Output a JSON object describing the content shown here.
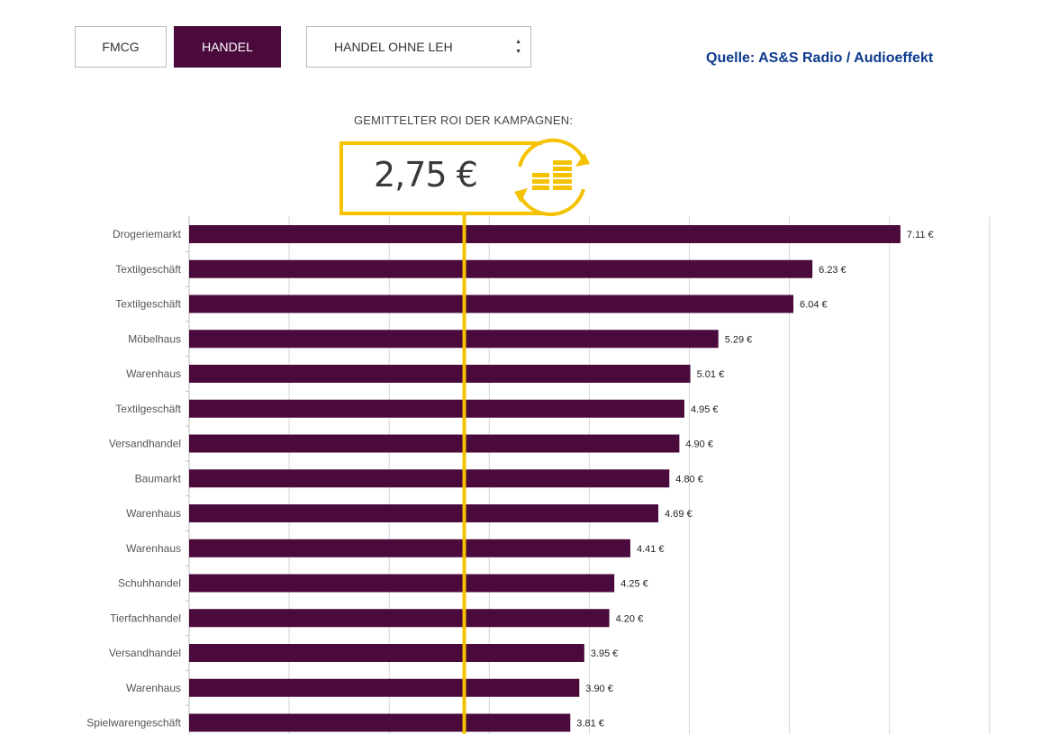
{
  "filters": {
    "fmcg_label": "FMCG",
    "handel_label": "HANDEL",
    "active": "HANDEL",
    "select_value": "HANDEL OHNE LEH"
  },
  "source": "Quelle: AS&S Radio / Audioeffekt",
  "roi": {
    "label": "GEMITTELTER ROI DER KAMPAGNEN:",
    "value": "2,75 €",
    "numeric": 2.75
  },
  "colors": {
    "bar": "#4a0a3c",
    "accent": "#f5c200",
    "active_button": "#4a0a3c",
    "source_text": "#0d3a8c",
    "grid": "#d6d6d6"
  },
  "chart_data": {
    "type": "bar",
    "orientation": "horizontal",
    "categories": [
      "Drogeriemarkt",
      "Textilgeschäft",
      "Textilgeschäft",
      "Möbelhaus",
      "Warenhaus",
      "Textilgeschäft",
      "Versandhandel",
      "Baumarkt",
      "Warenhaus",
      "Warenhaus",
      "Schuhhandel",
      "Tierfachhandel",
      "Versandhandel",
      "Warenhaus",
      "Spielwarengeschäft"
    ],
    "values": [
      7.11,
      6.23,
      6.04,
      5.29,
      5.01,
      4.95,
      4.9,
      4.8,
      4.69,
      4.41,
      4.25,
      4.2,
      3.95,
      3.9,
      3.81
    ],
    "data_labels": [
      "7.11 €",
      "6.23 €",
      "6.04 €",
      "5.29 €",
      "5.01 €",
      "4.95 €",
      "4.90 €",
      "4.80 €",
      "4.69 €",
      "4.41 €",
      "4.25 €",
      "4.20 €",
      "3.95 €",
      "3.90 €",
      "3.81 €"
    ],
    "xlim": [
      0,
      8
    ],
    "grid_step": 1,
    "reference_line": 2.75,
    "grid": true,
    "title": "",
    "xlabel": "",
    "ylabel": ""
  }
}
